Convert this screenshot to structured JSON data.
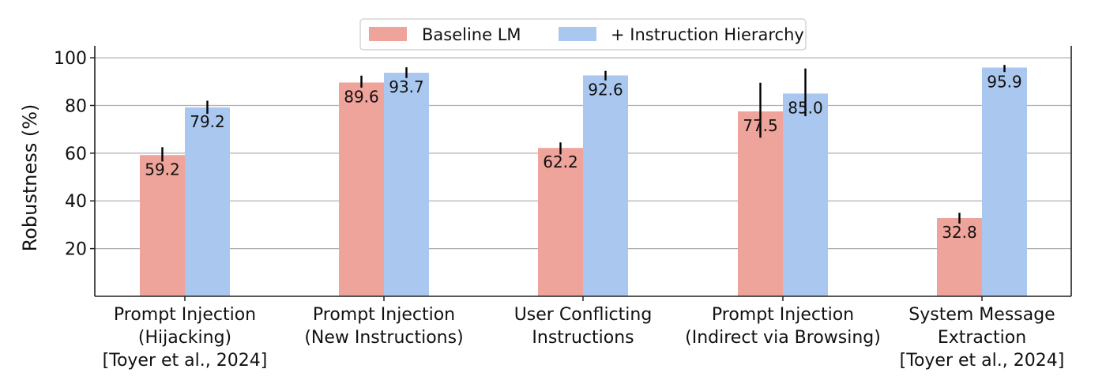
{
  "chart_data": {
    "type": "bar",
    "categories": [
      [
        "Prompt Injection",
        "(Hijacking)",
        "[Toyer et al., 2024]"
      ],
      [
        "Prompt Injection",
        "(New Instructions)"
      ],
      [
        "User Conflicting",
        "Instructions"
      ],
      [
        "Prompt Injection",
        "(Indirect via Browsing)"
      ],
      [
        "System Message",
        "Extraction",
        "[Toyer et al., 2024]"
      ]
    ],
    "series": [
      {
        "name": "Baseline LM",
        "color": "#eea39b",
        "values": [
          59.2,
          89.6,
          62.2,
          77.5,
          32.8
        ],
        "labels": [
          "59.2",
          "89.6",
          "62.2",
          "77.5",
          "32.8"
        ],
        "error_bars": [
          [
            56.5,
            62.5
          ],
          [
            87.5,
            92.5
          ],
          [
            59.5,
            64.5
          ],
          [
            66.5,
            89.5
          ],
          [
            30.5,
            35.0
          ]
        ]
      },
      {
        "name": "+ Instruction Hierarchy",
        "color": "#aac8ef",
        "values": [
          79.2,
          93.7,
          92.6,
          85.0,
          95.9
        ],
        "labels": [
          "79.2",
          "93.7",
          "92.6",
          "85.0",
          "95.9"
        ],
        "error_bars": [
          [
            76.5,
            82.0
          ],
          [
            91.5,
            96.0
          ],
          [
            90.5,
            94.5
          ],
          [
            75.5,
            95.5
          ],
          [
            94.0,
            97.0
          ]
        ]
      }
    ],
    "ylabel": "Robustness (%)",
    "xlabel": "",
    "ylim": [
      0,
      105
    ],
    "yticks": [
      20,
      40,
      60,
      80,
      100
    ],
    "ytick_labels": [
      "20",
      "40",
      "60",
      "80",
      "100"
    ],
    "grid": "horizontal",
    "legend_position": "top-center"
  }
}
